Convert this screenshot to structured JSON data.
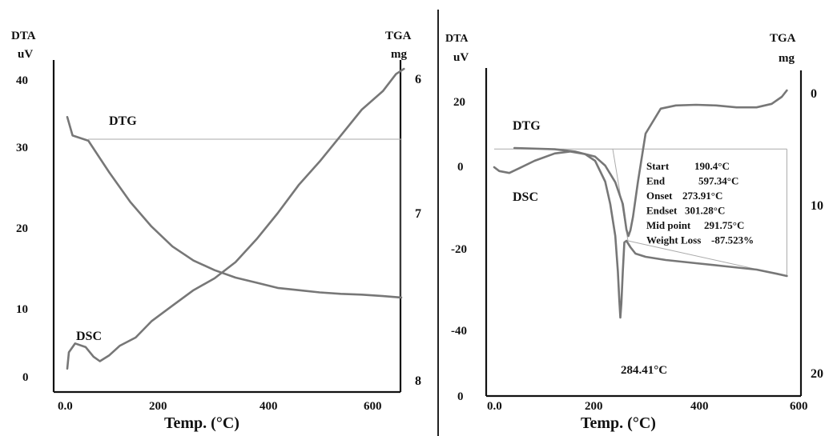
{
  "chart_data": [
    {
      "type": "line",
      "x_label": "Temp. (°C)",
      "xticks": [
        "0.0",
        "200",
        "400",
        "600"
      ],
      "xlim": [
        -20,
        660
      ],
      "left_axis": {
        "label_line1": "DTA",
        "label_line2": "uV",
        "ticks": [
          "0",
          "10",
          "20",
          "30",
          "40"
        ],
        "ylim": [
          -1,
          42
        ]
      },
      "right_axis": {
        "label_line1": "TGA",
        "label_line2": "mg",
        "ticks": [
          "6",
          "7",
          "8"
        ],
        "ylim": [
          6,
          8.05
        ]
      },
      "annotations": {
        "dtg": "DTG",
        "dsc": "DSC"
      },
      "series": [
        {
          "name": "DTG",
          "axis": "left",
          "x": [
            0,
            10,
            40,
            80,
            120,
            160,
            200,
            240,
            280,
            320,
            360,
            400,
            440,
            480,
            520,
            560,
            600,
            635
          ],
          "y": [
            35,
            32.5,
            31.8,
            27.5,
            23.5,
            20.2,
            17.5,
            15.6,
            14.3,
            13.3,
            12.6,
            11.9,
            11.6,
            11.3,
            11.1,
            11.0,
            10.8,
            10.6
          ]
        },
        {
          "name": "DSC",
          "axis": "left",
          "x": [
            0,
            3,
            15,
            35,
            50,
            62,
            80,
            100,
            130,
            160,
            200,
            240,
            280,
            320,
            360,
            400,
            440,
            480,
            520,
            560,
            600,
            625,
            640
          ],
          "y": [
            1,
            3.2,
            4.4,
            3.9,
            2.6,
            2.0,
            2.8,
            4.1,
            5.2,
            7.4,
            9.5,
            11.6,
            13.2,
            15.4,
            18.5,
            22.0,
            25.8,
            29.0,
            32.5,
            36.0,
            38.5,
            40.8,
            41.5
          ]
        }
      ],
      "reference_box": {
        "x0": 40,
        "x1": 635,
        "y_top": 32.0
      }
    },
    {
      "type": "line",
      "x_label": "Temp. (°C)",
      "xticks": [
        "0.0",
        "200",
        "400",
        "600"
      ],
      "xlim": [
        -20,
        600
      ],
      "left_axis": {
        "label_line1": "DTA",
        "label_line2": "uV",
        "ticks": [
          "20",
          "0",
          "-20",
          "-40"
        ],
        "y_zero_label": "0"
      },
      "right_axis": {
        "label_line1": "TGA",
        "label_line2": "mg",
        "ticks": [
          "0",
          "10",
          "20"
        ]
      },
      "annotations": {
        "dtg": "DTG",
        "dsc": "DSC",
        "peak": "284.41°C"
      },
      "results": [
        {
          "key": "Start",
          "value": "190.4°C"
        },
        {
          "key": "End",
          "value": "597.34°C"
        },
        {
          "key": "Onset",
          "value": "273.91°C"
        },
        {
          "key": "Endset",
          "value": "301.28°C"
        },
        {
          "key": "Mid point",
          "value": "291.75°C"
        },
        {
          "key": "Weight Loss",
          "value": "-87.523%"
        }
      ],
      "series": [
        {
          "name": "DTG",
          "axis": "left",
          "x": [
            40,
            120,
            160,
            200,
            220,
            240,
            255,
            262,
            266,
            270,
            275,
            285,
            300,
            330,
            360,
            400,
            440,
            480,
            520,
            550,
            570,
            580
          ],
          "y": [
            5.5,
            5.1,
            4.4,
            2.8,
            0.0,
            -5.2,
            -12.0,
            -20.0,
            -22.0,
            -20.2,
            -16.0,
            -5.0,
            10.0,
            17.8,
            18.8,
            19.0,
            18.8,
            18.2,
            18.2,
            19.3,
            21.5,
            23.5
          ]
        },
        {
          "name": "DSC",
          "axis": "left",
          "x": [
            0,
            10,
            30,
            50,
            80,
            120,
            150,
            180,
            200,
            220,
            230,
            240,
            245,
            248,
            250,
            252,
            255,
            258,
            262,
            266,
            270,
            280,
            300,
            340,
            400,
            460,
            520,
            560,
            580
          ],
          "y": [
            -0.5,
            -1.7,
            -2.3,
            -0.8,
            1.5,
            3.8,
            4.4,
            3.6,
            1.5,
            -5.0,
            -12.0,
            -22.0,
            -33.0,
            -42.0,
            -47.5,
            -43.0,
            -33.0,
            -24.0,
            -23.5,
            -24.5,
            -25.5,
            -27.5,
            -28.5,
            -29.5,
            -30.5,
            -31.5,
            -32.5,
            -33.8,
            -34.5
          ]
        }
      ],
      "reference_lines": [
        {
          "x": [
            0,
            580
          ],
          "y": [
            5.2,
            5.2
          ]
        },
        {
          "x": [
            265,
            580
          ],
          "y": [
            -23.5,
            -34.5
          ]
        },
        {
          "x": [
            580,
            580
          ],
          "y": [
            5.2,
            -34.5
          ]
        },
        {
          "x": [
            235,
            265
          ],
          "y": [
            5.2,
            -23.5
          ]
        }
      ]
    }
  ]
}
